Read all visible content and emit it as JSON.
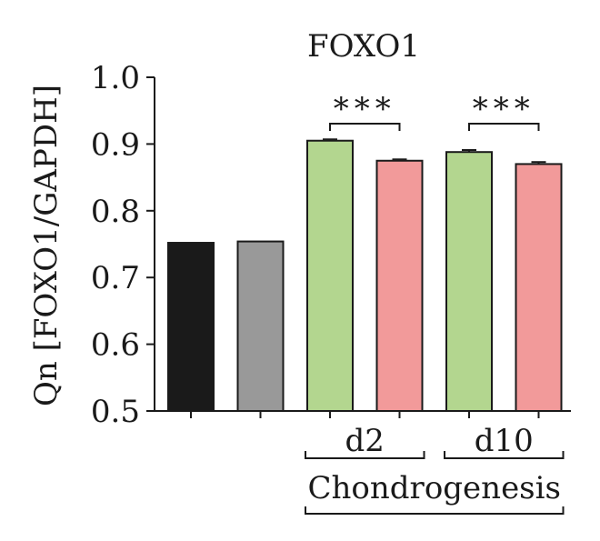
{
  "chart_data": {
    "type": "bar",
    "title": "FOXO1",
    "ylabel": "Qn [FOXO1/GAPDH]",
    "ylim": [
      0.5,
      1.0
    ],
    "yticks": [
      "0.5",
      "0.6",
      "0.7",
      "0.8",
      "0.9",
      "1.0"
    ],
    "values": [
      0.752,
      0.754,
      0.905,
      0.875,
      0.888,
      0.87
    ],
    "errors": [
      0.0,
      0.0,
      0.002,
      0.002,
      0.003,
      0.003
    ],
    "bar_colors": [
      "#1a1a1a",
      "#999999",
      "#b3d68f",
      "#f29a9a",
      "#b3d68f",
      "#f29a9a"
    ],
    "groups": [
      {
        "label": "d2",
        "bars": [
          2,
          3
        ]
      },
      {
        "label": "d10",
        "bars": [
          4,
          5
        ]
      }
    ],
    "supergroup": {
      "label": "Chondrogenesis",
      "bars": [
        2,
        5
      ]
    },
    "significance": [
      {
        "bars": [
          2,
          3
        ],
        "label": "***"
      },
      {
        "bars": [
          4,
          5
        ],
        "label": "***"
      }
    ],
    "grid": false,
    "legend": "none"
  }
}
